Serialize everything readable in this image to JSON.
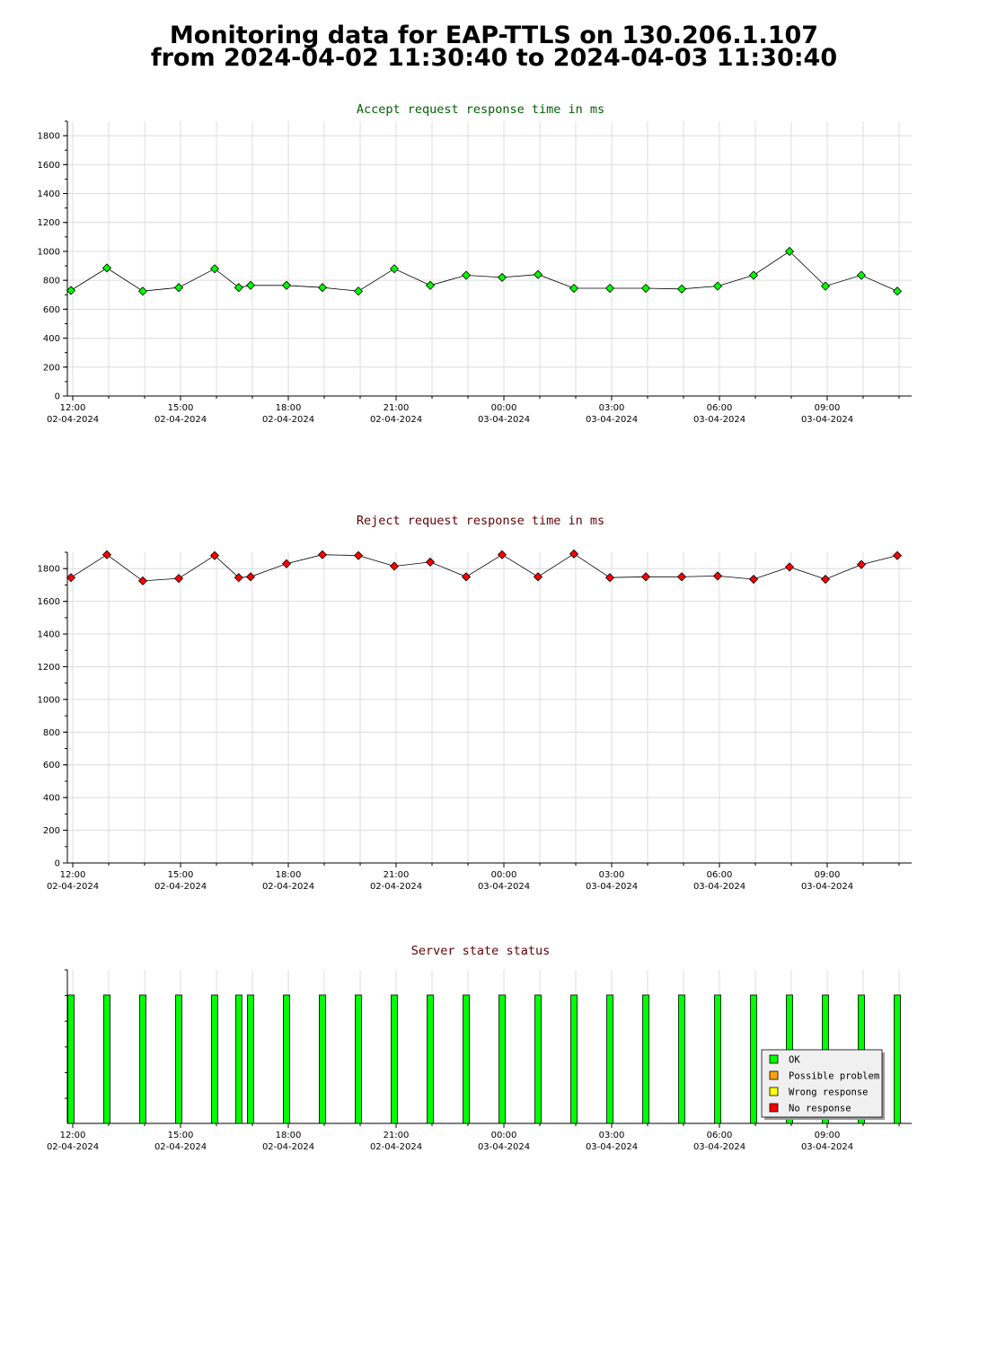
{
  "page": {
    "title_line1": "Monitoring data for EAP-TTLS on 130.206.1.107",
    "title_line2": "from 2024-04-02 11:30:40 to 2024-04-03 11:30:40"
  },
  "colors": {
    "accept": "#00ff00",
    "accept_title": "#006000",
    "reject": "#ff0000",
    "reject_title": "#600000",
    "status_title": "#600000",
    "grid": "#dcdcdc"
  },
  "chart_data": [
    {
      "type": "line",
      "title": "Accept request response time in ms",
      "ylim": [
        0,
        1900
      ],
      "yticks": [
        0,
        200,
        400,
        600,
        800,
        1000,
        1200,
        1400,
        1600,
        1800
      ],
      "x_range_hours": [
        11.85,
        35.35
      ],
      "x_tick_labels": [
        {
          "h": 12,
          "time": "12:00",
          "date": "02-04-2024"
        },
        {
          "h": 15,
          "time": "15:00",
          "date": "02-04-2024"
        },
        {
          "h": 18,
          "time": "18:00",
          "date": "02-04-2024"
        },
        {
          "h": 21,
          "time": "21:00",
          "date": "02-04-2024"
        },
        {
          "h": 24,
          "time": "00:00",
          "date": "03-04-2024"
        },
        {
          "h": 27,
          "time": "03:00",
          "date": "03-04-2024"
        },
        {
          "h": 30,
          "time": "06:00",
          "date": "03-04-2024"
        },
        {
          "h": 33,
          "time": "09:00",
          "date": "03-04-2024"
        }
      ],
      "series": [
        {
          "x": [
            11.95,
            12.95,
            13.95,
            14.95,
            15.95,
            16.62,
            16.95,
            17.95,
            18.95,
            19.95,
            20.95,
            21.95,
            22.95,
            23.95,
            24.95,
            25.95,
            26.95,
            27.95,
            28.95,
            29.95,
            30.95,
            31.95,
            32.95,
            33.95,
            34.95
          ],
          "values": [
            730,
            885,
            725,
            750,
            880,
            750,
            765,
            765,
            750,
            725,
            880,
            765,
            835,
            820,
            840,
            745,
            745,
            745,
            740,
            760,
            835,
            1000,
            760,
            835,
            725
          ]
        }
      ]
    },
    {
      "type": "line",
      "title": "Reject request response time in ms",
      "ylim": [
        0,
        1900
      ],
      "yticks": [
        0,
        200,
        400,
        600,
        800,
        1000,
        1200,
        1400,
        1600,
        1800
      ],
      "x_range_hours": [
        11.85,
        35.35
      ],
      "x_tick_labels": [
        {
          "h": 12,
          "time": "12:00",
          "date": "02-04-2024"
        },
        {
          "h": 15,
          "time": "15:00",
          "date": "02-04-2024"
        },
        {
          "h": 18,
          "time": "18:00",
          "date": "02-04-2024"
        },
        {
          "h": 21,
          "time": "21:00",
          "date": "02-04-2024"
        },
        {
          "h": 24,
          "time": "00:00",
          "date": "03-04-2024"
        },
        {
          "h": 27,
          "time": "03:00",
          "date": "03-04-2024"
        },
        {
          "h": 30,
          "time": "06:00",
          "date": "03-04-2024"
        },
        {
          "h": 33,
          "time": "09:00",
          "date": "03-04-2024"
        }
      ],
      "series": [
        {
          "x": [
            11.95,
            12.95,
            13.95,
            14.95,
            15.95,
            16.62,
            16.95,
            17.95,
            18.95,
            19.95,
            20.95,
            21.95,
            22.95,
            23.95,
            24.95,
            25.95,
            26.95,
            27.95,
            28.95,
            29.95,
            30.95,
            31.95,
            32.95,
            33.95,
            34.95
          ],
          "values": [
            1745,
            1885,
            1725,
            1740,
            1880,
            1745,
            1750,
            1830,
            1885,
            1880,
            1815,
            1840,
            1750,
            1885,
            1750,
            1890,
            1745,
            1750,
            1750,
            1755,
            1735,
            1810,
            1735,
            1825,
            1880
          ]
        }
      ]
    },
    {
      "type": "bar",
      "title": "Server state status",
      "x_range_hours": [
        11.85,
        35.35
      ],
      "x_tick_labels": [
        {
          "h": 12,
          "time": "12:00",
          "date": "02-04-2024"
        },
        {
          "h": 15,
          "time": "15:00",
          "date": "02-04-2024"
        },
        {
          "h": 18,
          "time": "18:00",
          "date": "02-04-2024"
        },
        {
          "h": 21,
          "time": "21:00",
          "date": "02-04-2024"
        },
        {
          "h": 24,
          "time": "00:00",
          "date": "03-04-2024"
        },
        {
          "h": 27,
          "time": "03:00",
          "date": "03-04-2024"
        },
        {
          "h": 30,
          "time": "06:00",
          "date": "03-04-2024"
        },
        {
          "h": 33,
          "time": "09:00",
          "date": "03-04-2024"
        }
      ],
      "x": [
        11.95,
        12.95,
        13.95,
        14.95,
        15.95,
        16.62,
        16.95,
        17.95,
        18.95,
        19.95,
        20.95,
        21.95,
        22.95,
        23.95,
        24.95,
        25.95,
        26.95,
        27.95,
        28.95,
        29.95,
        30.95,
        31.95,
        32.95,
        33.95,
        34.95
      ],
      "states": [
        "OK",
        "OK",
        "OK",
        "OK",
        "OK",
        "OK",
        "OK",
        "OK",
        "OK",
        "OK",
        "OK",
        "OK",
        "OK",
        "OK",
        "OK",
        "OK",
        "OK",
        "OK",
        "OK",
        "OK",
        "OK",
        "OK",
        "OK",
        "OK",
        "OK"
      ],
      "legend": [
        {
          "label": "OK",
          "color": "#00ff00"
        },
        {
          "label": "Possible problem",
          "color": "#ffa500"
        },
        {
          "label": "Wrong response",
          "color": "#ffff00"
        },
        {
          "label": "No response",
          "color": "#ff0000"
        }
      ],
      "legend_position": "bottom-right"
    }
  ]
}
